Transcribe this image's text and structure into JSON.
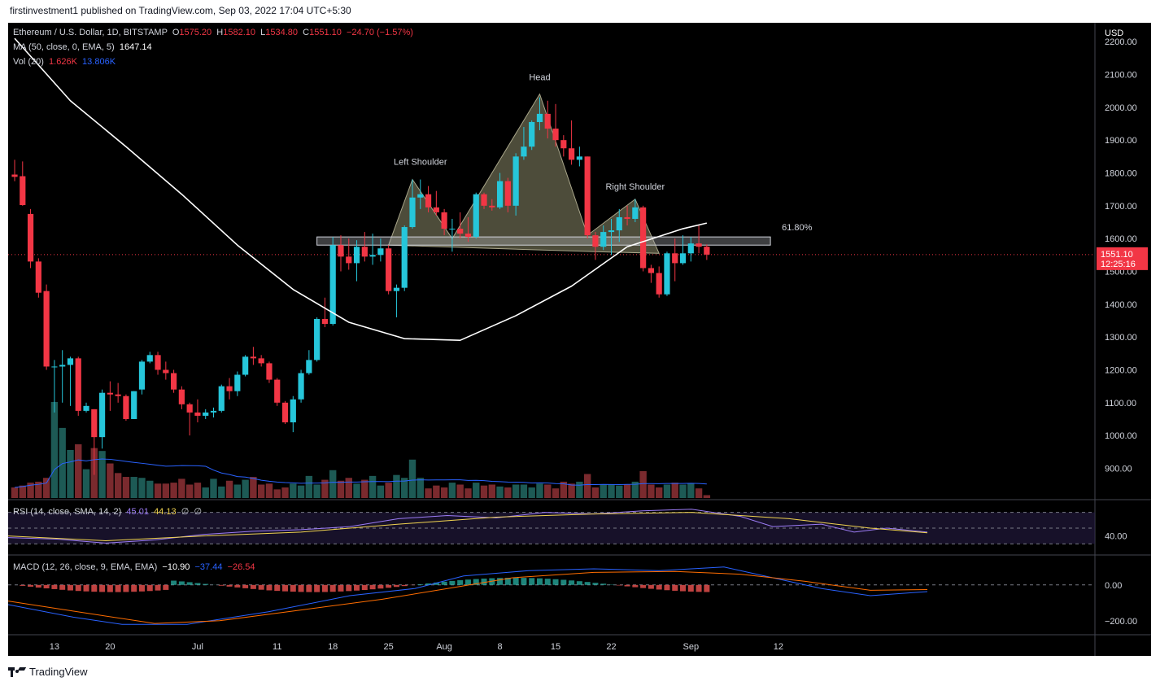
{
  "header": {
    "publisher": "firstinvestment1 published on TradingView.com, Sep 03, 2022 17:04 UTC+5:30"
  },
  "legend": {
    "symbol": "Ethereum / U.S. Dollar, 1D, BITSTAMP",
    "o_label": "O",
    "o": "1575.20",
    "h_label": "H",
    "h": "1582.10",
    "l_label": "L",
    "l": "1534.80",
    "c_label": "C",
    "c": "1551.10",
    "change": "−24.70 (−1.57%)",
    "ma_label": "MA (50, close, 0, EMA, 5)",
    "ma_value": "1647.14",
    "vol_label": "Vol (20)",
    "vol_value": "1.626K",
    "vol_ma": "13.806K",
    "rsi_label": "RSI (14, close, SMA, 14, 2)",
    "rsi_value": "45.01",
    "rsi_ma": "44.13",
    "rsi_extra1": "∅",
    "rsi_extra2": "∅",
    "macd_label": "MACD (12, 26, close, 9, EMA, EMA)",
    "macd_hist": "−10.90",
    "macd_line": "−37.44",
    "macd_signal": "−26.54"
  },
  "price_axis": {
    "currency": "USD",
    "ticks": [
      "2200.00",
      "2100.00",
      "2000.00",
      "1900.00",
      "1800.00",
      "1700.00",
      "1600.00",
      "1500.00",
      "1400.00",
      "1300.00",
      "1200.00",
      "1100.00",
      "1000.00",
      "900.00"
    ],
    "last_price": "1551.10",
    "countdown": "12:25:16"
  },
  "rsi_axis": {
    "ticks": [
      "40.00"
    ]
  },
  "macd_axis": {
    "ticks": [
      "0.00",
      "−200.00"
    ]
  },
  "time_axis": {
    "labels": [
      "13",
      "20",
      "Jul",
      "11",
      "18",
      "25",
      "Aug",
      "8",
      "15",
      "22",
      "Sep",
      "12"
    ]
  },
  "annotations": {
    "left_shoulder": "Left Shoulder",
    "head": "Head",
    "right_shoulder": "Right Shoulder",
    "fib": "61.80%"
  },
  "footer": {
    "brand": "TradingView"
  },
  "colors": {
    "up": "#26c6da",
    "down": "#f23645",
    "vol_up": "#1d5a55",
    "vol_down": "#7a2a2e",
    "ma": "#ffffff",
    "bg": "#000000"
  },
  "chart_data": {
    "type": "candlestick",
    "title": "Ethereum / U.S. Dollar, 1D, BITSTAMP",
    "ylabel": "USD",
    "ylim": [
      820,
      2230
    ],
    "grid": false,
    "candles": [
      {
        "date": "2022-06-08",
        "o": 1795,
        "h": 1840,
        "l": 1775,
        "c": 1788
      },
      {
        "date": "2022-06-09",
        "o": 1790,
        "h": 1835,
        "l": 1700,
        "c": 1702
      },
      {
        "date": "2022-06-10",
        "o": 1675,
        "h": 1690,
        "l": 1510,
        "c": 1530
      },
      {
        "date": "2022-06-11",
        "o": 1530,
        "h": 1540,
        "l": 1420,
        "c": 1435
      },
      {
        "date": "2022-06-12",
        "o": 1440,
        "h": 1460,
        "l": 1200,
        "c": 1210
      },
      {
        "date": "2022-06-13",
        "o": 1210,
        "h": 1230,
        "l": 1070,
        "c": 1210
      },
      {
        "date": "2022-06-14",
        "o": 1210,
        "h": 1260,
        "l": 1100,
        "c": 1215
      },
      {
        "date": "2022-06-15",
        "o": 1215,
        "h": 1240,
        "l": 1090,
        "c": 1235
      },
      {
        "date": "2022-06-16",
        "o": 1235,
        "h": 1240,
        "l": 1060,
        "c": 1075
      },
      {
        "date": "2022-06-17",
        "o": 1075,
        "h": 1100,
        "l": 1070,
        "c": 1090
      },
      {
        "date": "2022-06-18",
        "o": 1080,
        "h": 1080,
        "l": 880,
        "c": 995
      },
      {
        "date": "2022-06-19",
        "o": 995,
        "h": 1140,
        "l": 960,
        "c": 1130
      },
      {
        "date": "2022-06-20",
        "o": 1130,
        "h": 1165,
        "l": 1075,
        "c": 1125
      },
      {
        "date": "2022-06-21",
        "o": 1125,
        "h": 1160,
        "l": 1100,
        "c": 1120
      },
      {
        "date": "2022-06-22",
        "o": 1120,
        "h": 1125,
        "l": 1045,
        "c": 1050
      },
      {
        "date": "2022-06-23",
        "o": 1050,
        "h": 1135,
        "l": 1050,
        "c": 1135
      },
      {
        "date": "2022-06-24",
        "o": 1140,
        "h": 1230,
        "l": 1125,
        "c": 1225
      },
      {
        "date": "2022-06-25",
        "o": 1225,
        "h": 1255,
        "l": 1220,
        "c": 1245
      },
      {
        "date": "2022-06-26",
        "o": 1245,
        "h": 1255,
        "l": 1185,
        "c": 1200
      },
      {
        "date": "2022-06-27",
        "o": 1200,
        "h": 1225,
        "l": 1170,
        "c": 1190
      },
      {
        "date": "2022-06-28",
        "o": 1190,
        "h": 1200,
        "l": 1130,
        "c": 1140
      },
      {
        "date": "2022-06-29",
        "o": 1140,
        "h": 1150,
        "l": 1080,
        "c": 1095
      },
      {
        "date": "2022-06-30",
        "o": 1095,
        "h": 1100,
        "l": 1000,
        "c": 1070
      },
      {
        "date": "2022-07-01",
        "o": 1070,
        "h": 1110,
        "l": 1040,
        "c": 1060
      },
      {
        "date": "2022-07-02",
        "o": 1060,
        "h": 1080,
        "l": 1050,
        "c": 1070
      },
      {
        "date": "2022-07-03",
        "o": 1070,
        "h": 1085,
        "l": 1055,
        "c": 1075
      },
      {
        "date": "2022-07-04",
        "o": 1075,
        "h": 1155,
        "l": 1070,
        "c": 1150
      },
      {
        "date": "2022-07-05",
        "o": 1150,
        "h": 1175,
        "l": 1110,
        "c": 1135
      },
      {
        "date": "2022-07-06",
        "o": 1135,
        "h": 1195,
        "l": 1120,
        "c": 1185
      },
      {
        "date": "2022-07-07",
        "o": 1185,
        "h": 1245,
        "l": 1180,
        "c": 1240
      },
      {
        "date": "2022-07-08",
        "o": 1240,
        "h": 1270,
        "l": 1215,
        "c": 1235
      },
      {
        "date": "2022-07-09",
        "o": 1235,
        "h": 1245,
        "l": 1210,
        "c": 1220
      },
      {
        "date": "2022-07-10",
        "o": 1220,
        "h": 1225,
        "l": 1160,
        "c": 1170
      },
      {
        "date": "2022-07-11",
        "o": 1170,
        "h": 1175,
        "l": 1090,
        "c": 1100
      },
      {
        "date": "2022-07-12",
        "o": 1100,
        "h": 1105,
        "l": 1035,
        "c": 1040
      },
      {
        "date": "2022-07-13",
        "o": 1040,
        "h": 1120,
        "l": 1010,
        "c": 1110
      },
      {
        "date": "2022-07-14",
        "o": 1110,
        "h": 1200,
        "l": 1100,
        "c": 1190
      },
      {
        "date": "2022-07-15",
        "o": 1190,
        "h": 1260,
        "l": 1185,
        "c": 1230
      },
      {
        "date": "2022-07-16",
        "o": 1230,
        "h": 1360,
        "l": 1225,
        "c": 1355
      },
      {
        "date": "2022-07-17",
        "o": 1355,
        "h": 1420,
        "l": 1330,
        "c": 1340
      },
      {
        "date": "2022-07-18",
        "o": 1340,
        "h": 1605,
        "l": 1335,
        "c": 1580
      },
      {
        "date": "2022-07-19",
        "o": 1580,
        "h": 1610,
        "l": 1500,
        "c": 1545
      },
      {
        "date": "2022-07-20",
        "o": 1545,
        "h": 1600,
        "l": 1505,
        "c": 1525
      },
      {
        "date": "2022-07-21",
        "o": 1525,
        "h": 1595,
        "l": 1470,
        "c": 1575
      },
      {
        "date": "2022-07-22",
        "o": 1575,
        "h": 1620,
        "l": 1530,
        "c": 1545
      },
      {
        "date": "2022-07-23",
        "o": 1545,
        "h": 1615,
        "l": 1520,
        "c": 1550
      },
      {
        "date": "2022-07-24",
        "o": 1550,
        "h": 1600,
        "l": 1530,
        "c": 1570
      },
      {
        "date": "2022-07-25",
        "o": 1570,
        "h": 1580,
        "l": 1430,
        "c": 1440
      },
      {
        "date": "2022-07-26",
        "o": 1440,
        "h": 1460,
        "l": 1360,
        "c": 1450
      },
      {
        "date": "2022-07-27",
        "o": 1450,
        "h": 1640,
        "l": 1440,
        "c": 1635
      },
      {
        "date": "2022-07-28",
        "o": 1635,
        "h": 1780,
        "l": 1630,
        "c": 1725
      },
      {
        "date": "2022-07-29",
        "o": 1725,
        "h": 1780,
        "l": 1690,
        "c": 1735
      },
      {
        "date": "2022-07-30",
        "o": 1735,
        "h": 1760,
        "l": 1680,
        "c": 1695
      },
      {
        "date": "2022-07-31",
        "o": 1695,
        "h": 1745,
        "l": 1670,
        "c": 1680
      },
      {
        "date": "2022-08-01",
        "o": 1680,
        "h": 1690,
        "l": 1610,
        "c": 1630
      },
      {
        "date": "2022-08-02",
        "o": 1630,
        "h": 1660,
        "l": 1560,
        "c": 1630
      },
      {
        "date": "2022-08-03",
        "o": 1630,
        "h": 1680,
        "l": 1600,
        "c": 1615
      },
      {
        "date": "2022-08-04",
        "o": 1615,
        "h": 1665,
        "l": 1590,
        "c": 1605
      },
      {
        "date": "2022-08-05",
        "o": 1605,
        "h": 1740,
        "l": 1600,
        "c": 1735
      },
      {
        "date": "2022-08-06",
        "o": 1735,
        "h": 1740,
        "l": 1690,
        "c": 1700
      },
      {
        "date": "2022-08-07",
        "o": 1700,
        "h": 1720,
        "l": 1685,
        "c": 1695
      },
      {
        "date": "2022-08-08",
        "o": 1695,
        "h": 1800,
        "l": 1690,
        "c": 1775
      },
      {
        "date": "2022-08-09",
        "o": 1775,
        "h": 1785,
        "l": 1680,
        "c": 1700
      },
      {
        "date": "2022-08-10",
        "o": 1700,
        "h": 1860,
        "l": 1670,
        "c": 1850
      },
      {
        "date": "2022-08-11",
        "o": 1850,
        "h": 1940,
        "l": 1840,
        "c": 1880
      },
      {
        "date": "2022-08-12",
        "o": 1880,
        "h": 1960,
        "l": 1870,
        "c": 1955
      },
      {
        "date": "2022-08-13",
        "o": 1955,
        "h": 2030,
        "l": 1930,
        "c": 1980
      },
      {
        "date": "2022-08-14",
        "o": 1980,
        "h": 2020,
        "l": 1905,
        "c": 1935
      },
      {
        "date": "2022-08-15",
        "o": 1935,
        "h": 2010,
        "l": 1880,
        "c": 1900
      },
      {
        "date": "2022-08-16",
        "o": 1900,
        "h": 1915,
        "l": 1850,
        "c": 1875
      },
      {
        "date": "2022-08-17",
        "o": 1875,
        "h": 1960,
        "l": 1825,
        "c": 1840
      },
      {
        "date": "2022-08-18",
        "o": 1840,
        "h": 1880,
        "l": 1820,
        "c": 1850
      },
      {
        "date": "2022-08-19",
        "o": 1850,
        "h": 1850,
        "l": 1600,
        "c": 1610
      },
      {
        "date": "2022-08-20",
        "o": 1610,
        "h": 1620,
        "l": 1535,
        "c": 1575
      },
      {
        "date": "2022-08-21",
        "o": 1575,
        "h": 1640,
        "l": 1565,
        "c": 1620
      },
      {
        "date": "2022-08-22",
        "o": 1620,
        "h": 1660,
        "l": 1550,
        "c": 1625
      },
      {
        "date": "2022-08-23",
        "o": 1625,
        "h": 1690,
        "l": 1590,
        "c": 1665
      },
      {
        "date": "2022-08-24",
        "o": 1665,
        "h": 1700,
        "l": 1640,
        "c": 1660
      },
      {
        "date": "2022-08-25",
        "o": 1660,
        "h": 1720,
        "l": 1650,
        "c": 1695
      },
      {
        "date": "2022-08-26",
        "o": 1695,
        "h": 1700,
        "l": 1500,
        "c": 1510
      },
      {
        "date": "2022-08-27",
        "o": 1510,
        "h": 1520,
        "l": 1465,
        "c": 1495
      },
      {
        "date": "2022-08-28",
        "o": 1495,
        "h": 1515,
        "l": 1420,
        "c": 1430
      },
      {
        "date": "2022-08-29",
        "o": 1430,
        "h": 1560,
        "l": 1425,
        "c": 1555
      },
      {
        "date": "2022-08-30",
        "o": 1555,
        "h": 1600,
        "l": 1470,
        "c": 1525
      },
      {
        "date": "2022-08-31",
        "o": 1525,
        "h": 1610,
        "l": 1520,
        "c": 1555
      },
      {
        "date": "2022-09-01",
        "o": 1555,
        "h": 1605,
        "l": 1530,
        "c": 1585
      },
      {
        "date": "2022-09-02",
        "o": 1585,
        "h": 1640,
        "l": 1555,
        "c": 1575
      },
      {
        "date": "2022-09-03",
        "o": 1575.2,
        "h": 1582.1,
        "l": 1534.8,
        "c": 1551.1
      }
    ],
    "ma50": [
      {
        "date": "2022-06-08",
        "v": 2210
      },
      {
        "date": "2022-06-15",
        "v": 2020
      },
      {
        "date": "2022-06-22",
        "v": 1880
      },
      {
        "date": "2022-06-29",
        "v": 1735
      },
      {
        "date": "2022-07-06",
        "v": 1580
      },
      {
        "date": "2022-07-13",
        "v": 1445
      },
      {
        "date": "2022-07-20",
        "v": 1345
      },
      {
        "date": "2022-07-27",
        "v": 1295
      },
      {
        "date": "2022-08-03",
        "v": 1290
      },
      {
        "date": "2022-08-10",
        "v": 1365
      },
      {
        "date": "2022-08-17",
        "v": 1455
      },
      {
        "date": "2022-08-24",
        "v": 1575
      },
      {
        "date": "2022-08-31",
        "v": 1630
      },
      {
        "date": "2022-09-03",
        "v": 1647.14
      }
    ],
    "horizontal_zone": {
      "from": "2022-07-16",
      "to": "2022-09-11",
      "low": 1580,
      "high": 1605,
      "label": "61.80%"
    },
    "volume": [
      110,
      130,
      160,
      170,
      210,
      1000,
      730,
      500,
      560,
      300,
      520,
      490,
      360,
      260,
      220,
      220,
      210,
      180,
      150,
      150,
      160,
      200,
      140,
      160,
      110,
      200,
      120,
      180,
      140,
      190,
      220,
      140,
      150,
      90,
      110,
      150,
      130,
      230,
      140,
      190,
      290,
      180,
      210,
      150,
      190,
      230,
      130,
      160,
      240,
      210,
      400,
      210,
      100,
      130,
      110,
      160,
      140,
      100,
      160,
      130,
      140,
      120,
      110,
      140,
      140,
      110,
      150,
      140,
      100,
      170,
      150,
      170,
      250,
      110,
      140,
      140,
      130,
      140,
      170,
      280,
      140,
      110,
      140,
      160,
      140,
      150,
      100,
      30
    ],
    "rsi_axis_ticks": [
      40
    ],
    "macd_axis_ticks": [
      0,
      -200
    ]
  }
}
